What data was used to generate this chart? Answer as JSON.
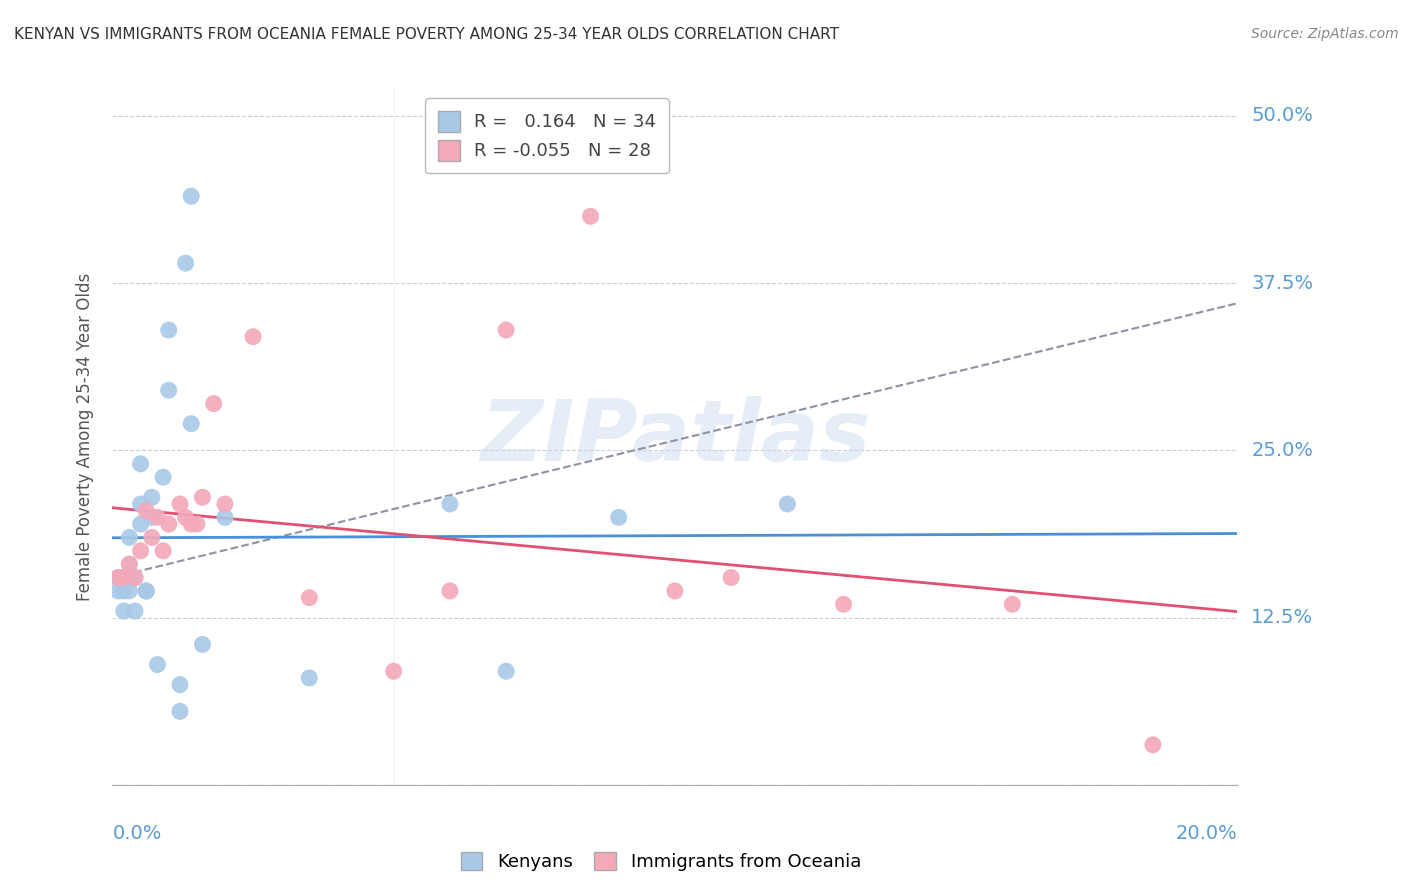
{
  "title": "KENYAN VS IMMIGRANTS FROM OCEANIA FEMALE POVERTY AMONG 25-34 YEAR OLDS CORRELATION CHART",
  "source": "Source: ZipAtlas.com",
  "ylabel": "Female Poverty Among 25-34 Year Olds",
  "xrange": [
    0.0,
    0.2
  ],
  "yrange": [
    0.0,
    0.52
  ],
  "kenyan_color": "#a8c8e8",
  "oceania_color": "#f4a8b8",
  "trend_kenyan_color": "#4a90d9",
  "trend_oceania_color": "#e05070",
  "trend_dashed_color": "#9090a8",
  "background_color": "#ffffff",
  "watermark": "ZIPatlas",
  "kenyan_x": [
    0.001,
    0.001,
    0.002,
    0.002,
    0.002,
    0.003,
    0.003,
    0.003,
    0.003,
    0.004,
    0.004,
    0.005,
    0.005,
    0.005,
    0.006,
    0.006,
    0.007,
    0.007,
    0.008,
    0.009,
    0.01,
    0.01,
    0.012,
    0.012,
    0.013,
    0.014,
    0.014,
    0.016,
    0.02,
    0.035,
    0.06,
    0.07,
    0.09,
    0.12
  ],
  "kenyan_y": [
    0.155,
    0.145,
    0.145,
    0.155,
    0.13,
    0.145,
    0.155,
    0.165,
    0.185,
    0.13,
    0.155,
    0.195,
    0.21,
    0.24,
    0.145,
    0.145,
    0.2,
    0.215,
    0.09,
    0.23,
    0.295,
    0.34,
    0.055,
    0.075,
    0.39,
    0.44,
    0.27,
    0.105,
    0.2,
    0.08,
    0.21,
    0.085,
    0.2,
    0.21
  ],
  "oceania_x": [
    0.001,
    0.002,
    0.003,
    0.004,
    0.005,
    0.006,
    0.007,
    0.008,
    0.009,
    0.01,
    0.012,
    0.013,
    0.014,
    0.015,
    0.016,
    0.018,
    0.02,
    0.025,
    0.035,
    0.05,
    0.06,
    0.07,
    0.085,
    0.1,
    0.11,
    0.13,
    0.16,
    0.185
  ],
  "oceania_y": [
    0.155,
    0.155,
    0.165,
    0.155,
    0.175,
    0.205,
    0.185,
    0.2,
    0.175,
    0.195,
    0.21,
    0.2,
    0.195,
    0.195,
    0.215,
    0.285,
    0.21,
    0.335,
    0.14,
    0.085,
    0.145,
    0.34,
    0.425,
    0.145,
    0.155,
    0.135,
    0.135,
    0.03
  ],
  "yticks": [
    0.0,
    0.125,
    0.25,
    0.375,
    0.5
  ],
  "xticks": [
    0.0,
    0.025,
    0.05,
    0.075,
    0.1,
    0.125,
    0.15,
    0.175,
    0.2
  ],
  "legend_r1_val": "0.164",
  "legend_r1_n": "34",
  "legend_r2_val": "-0.055",
  "legend_r2_n": "28"
}
